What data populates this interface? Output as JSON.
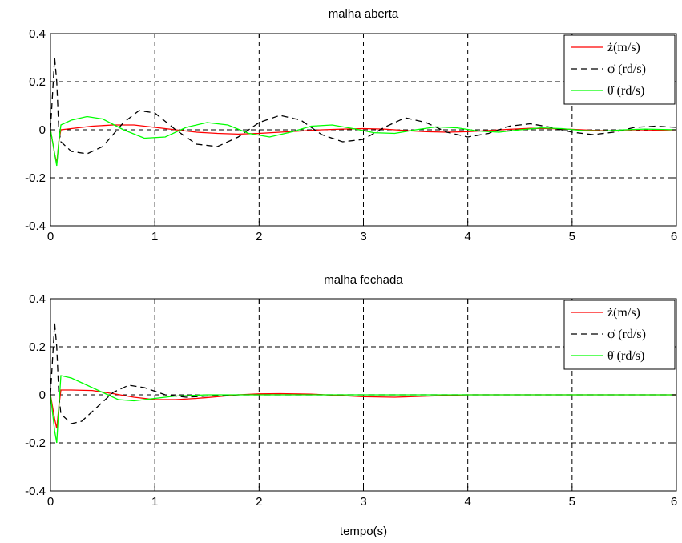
{
  "chart_data": [
    {
      "type": "line",
      "title": "malha aberta",
      "xlabel": "",
      "ylabel": "",
      "xlim": [
        0,
        6
      ],
      "ylim": [
        -0.4,
        0.4
      ],
      "xticks": [
        "0",
        "1",
        "2",
        "3",
        "4",
        "5",
        "6"
      ],
      "yticks": [
        "0.4",
        "0.2",
        "0",
        "-0.2",
        "-0.4"
      ],
      "grid": true,
      "legend_position": "top-right",
      "series": [
        {
          "name": "ż(m/s)",
          "color": "#ff0000",
          "style": "solid",
          "x": [
            0,
            0.04,
            0.06,
            0.08,
            0.1,
            0.2,
            0.4,
            0.6,
            0.8,
            1.0,
            1.2,
            1.4,
            1.6,
            1.8,
            2.0,
            2.2,
            2.4,
            2.6,
            2.8,
            3.0,
            3.2,
            3.4,
            3.6,
            3.8,
            4.0,
            4.2,
            4.4,
            4.6,
            4.8,
            5.0,
            5.2,
            5.4,
            5.6,
            5.8,
            6.0
          ],
          "y": [
            0,
            -0.1,
            -0.14,
            -0.05,
            0.0,
            0.005,
            0.015,
            0.02,
            0.02,
            0.01,
            0.0,
            -0.01,
            -0.015,
            -0.018,
            -0.015,
            -0.01,
            -0.005,
            0.0,
            0.003,
            0.005,
            0.003,
            -0.003,
            -0.008,
            -0.01,
            -0.008,
            -0.003,
            0.002,
            0.006,
            0.005,
            0.002,
            -0.002,
            -0.005,
            -0.004,
            -0.002,
            0.0
          ]
        },
        {
          "name": "φ̇ (rd/s)",
          "color": "#000000",
          "style": "dashed",
          "x": [
            0,
            0.02,
            0.04,
            0.06,
            0.08,
            0.1,
            0.2,
            0.35,
            0.5,
            0.7,
            0.85,
            1.0,
            1.2,
            1.4,
            1.6,
            1.8,
            2.0,
            2.2,
            2.4,
            2.6,
            2.8,
            3.0,
            3.2,
            3.4,
            3.6,
            3.8,
            4.0,
            4.2,
            4.4,
            4.6,
            4.8,
            5.0,
            5.2,
            5.4,
            5.6,
            5.8,
            6.0
          ],
          "y": [
            0,
            0.15,
            0.3,
            0.2,
            0.0,
            -0.05,
            -0.09,
            -0.1,
            -0.07,
            0.03,
            0.08,
            0.07,
            0.0,
            -0.06,
            -0.07,
            -0.03,
            0.03,
            0.06,
            0.04,
            -0.02,
            -0.05,
            -0.04,
            0.01,
            0.05,
            0.03,
            -0.01,
            -0.03,
            -0.015,
            0.015,
            0.025,
            0.01,
            -0.01,
            -0.02,
            -0.01,
            0.01,
            0.015,
            0.01
          ]
        },
        {
          "name": "θ̇ (rd/s)",
          "color": "#00ff00",
          "style": "solid",
          "x": [
            0,
            0.04,
            0.06,
            0.08,
            0.1,
            0.2,
            0.35,
            0.5,
            0.7,
            0.9,
            1.1,
            1.3,
            1.5,
            1.7,
            1.9,
            2.1,
            2.3,
            2.5,
            2.7,
            2.9,
            3.1,
            3.3,
            3.5,
            3.7,
            3.9,
            4.1,
            4.3,
            4.5,
            4.7,
            4.9,
            5.1,
            5.3,
            5.5,
            5.7,
            6.0
          ],
          "y": [
            0,
            -0.1,
            -0.15,
            -0.05,
            0.02,
            0.04,
            0.055,
            0.045,
            0.0,
            -0.035,
            -0.03,
            0.01,
            0.03,
            0.02,
            -0.015,
            -0.03,
            -0.01,
            0.015,
            0.02,
            0.005,
            -0.012,
            -0.015,
            0.0,
            0.012,
            0.008,
            -0.005,
            -0.01,
            0.0,
            0.008,
            0.005,
            -0.003,
            -0.005,
            0.0,
            0.003,
            0.0
          ]
        }
      ]
    },
    {
      "type": "line",
      "title": "malha fechada",
      "xlabel": "tempo(s)",
      "ylabel": "",
      "xlim": [
        0,
        6
      ],
      "ylim": [
        -0.4,
        0.4
      ],
      "xticks": [
        "0",
        "1",
        "2",
        "3",
        "4",
        "5",
        "6"
      ],
      "yticks": [
        "0.4",
        "0.2",
        "0",
        "-0.2",
        "-0.4"
      ],
      "grid": true,
      "legend_position": "top-right",
      "series": [
        {
          "name": "ż(m/s)",
          "color": "#ff0000",
          "style": "solid",
          "x": [
            0,
            0.04,
            0.06,
            0.08,
            0.1,
            0.2,
            0.4,
            0.6,
            0.8,
            1.0,
            1.2,
            1.4,
            1.6,
            1.8,
            2.0,
            2.2,
            2.5,
            3.0,
            3.3,
            4.0,
            5.0,
            6.0
          ],
          "y": [
            0,
            -0.1,
            -0.14,
            -0.05,
            0.02,
            0.02,
            0.018,
            0.005,
            -0.01,
            -0.02,
            -0.02,
            -0.015,
            -0.008,
            0.0,
            0.004,
            0.005,
            0.003,
            -0.008,
            -0.01,
            0.0,
            0.0,
            0.0
          ]
        },
        {
          "name": "φ̇ (rd/s)",
          "color": "#000000",
          "style": "dashed",
          "x": [
            0,
            0.02,
            0.04,
            0.06,
            0.08,
            0.1,
            0.2,
            0.3,
            0.45,
            0.6,
            0.75,
            0.9,
            1.1,
            1.3,
            1.5,
            1.8,
            2.2,
            3.0,
            4.0,
            5.0,
            6.0
          ],
          "y": [
            0,
            0.15,
            0.3,
            0.2,
            0.0,
            -0.08,
            -0.12,
            -0.11,
            -0.05,
            0.01,
            0.04,
            0.03,
            0.0,
            -0.01,
            -0.005,
            0.0,
            0.0,
            0.0,
            0.0,
            0.0,
            0.0
          ]
        },
        {
          "name": "θ̇ (rd/s)",
          "color": "#00ff00",
          "style": "solid",
          "x": [
            0,
            0.04,
            0.06,
            0.08,
            0.1,
            0.2,
            0.35,
            0.5,
            0.65,
            0.8,
            1.0,
            1.2,
            1.5,
            2.0,
            3.0,
            4.0,
            5.0,
            6.0
          ],
          "y": [
            0,
            -0.15,
            -0.2,
            -0.05,
            0.08,
            0.07,
            0.04,
            0.01,
            -0.02,
            -0.025,
            -0.015,
            -0.005,
            0.0,
            0.0,
            0.0,
            0.0,
            0.0,
            0.0
          ]
        }
      ]
    }
  ]
}
